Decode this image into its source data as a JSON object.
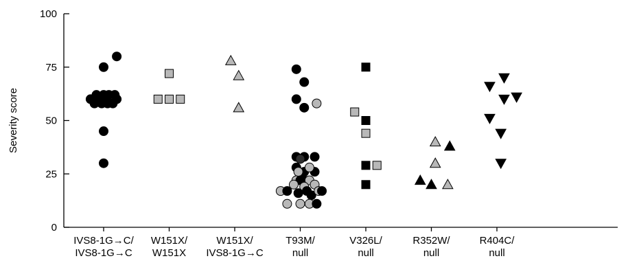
{
  "chart_data": {
    "type": "scatter",
    "title": "",
    "xlabel": "",
    "ylabel": "Severity score",
    "ylim": [
      0,
      100
    ],
    "yticks": [
      0,
      25,
      50,
      75,
      100
    ],
    "grid": false,
    "legend": "none",
    "categories": [
      {
        "line1": "IVS8-1G→C/",
        "line2": "IVS8-1G→C"
      },
      {
        "line1": "W151X/",
        "line2": "W151X"
      },
      {
        "line1": "W151X/",
        "line2": "IVS8-1G→C"
      },
      {
        "line1": "T93M/",
        "line2": "null"
      },
      {
        "line1": "V326L/",
        "line2": "null"
      },
      {
        "line1": "R352W/",
        "line2": "null"
      },
      {
        "line1": "R404C/",
        "line2": "null"
      }
    ],
    "colors": {
      "black": "#000000",
      "grey": "#b8b8b8",
      "dark": "#2e2e2e"
    },
    "points": [
      {
        "cat": 0,
        "dx": -0.2,
        "y": 60,
        "shape": "circle",
        "fill": "black"
      },
      {
        "cat": 0,
        "dx": -0.14,
        "y": 58,
        "shape": "circle",
        "fill": "black"
      },
      {
        "cat": 0,
        "dx": -0.11,
        "y": 62,
        "shape": "circle",
        "fill": "black"
      },
      {
        "cat": 0,
        "dx": -0.06,
        "y": 60,
        "shape": "circle",
        "fill": "black"
      },
      {
        "cat": 0,
        "dx": -0.03,
        "y": 58,
        "shape": "circle",
        "fill": "black"
      },
      {
        "cat": 0,
        "dx": 0.0,
        "y": 62,
        "shape": "circle",
        "fill": "black"
      },
      {
        "cat": 0,
        "dx": 0.03,
        "y": 60,
        "shape": "circle",
        "fill": "black"
      },
      {
        "cat": 0,
        "dx": 0.06,
        "y": 58,
        "shape": "circle",
        "fill": "black"
      },
      {
        "cat": 0,
        "dx": 0.08,
        "y": 62,
        "shape": "circle",
        "fill": "black"
      },
      {
        "cat": 0,
        "dx": 0.14,
        "y": 58,
        "shape": "circle",
        "fill": "black"
      },
      {
        "cat": 0,
        "dx": 0.17,
        "y": 62,
        "shape": "circle",
        "fill": "black"
      },
      {
        "cat": 0,
        "dx": 0.2,
        "y": 60,
        "shape": "circle",
        "fill": "black"
      },
      {
        "cat": 0,
        "dx": 0.0,
        "y": 75,
        "shape": "circle",
        "fill": "black"
      },
      {
        "cat": 0,
        "dx": 0.2,
        "y": 80,
        "shape": "circle",
        "fill": "black"
      },
      {
        "cat": 0,
        "dx": 0.0,
        "y": 45,
        "shape": "circle",
        "fill": "black"
      },
      {
        "cat": 0,
        "dx": 0.0,
        "y": 30,
        "shape": "circle",
        "fill": "black"
      },
      {
        "cat": 1,
        "dx": -0.17,
        "y": 60,
        "shape": "square",
        "fill": "grey"
      },
      {
        "cat": 1,
        "dx": 0.0,
        "y": 60,
        "shape": "square",
        "fill": "grey"
      },
      {
        "cat": 1,
        "dx": 0.17,
        "y": 60,
        "shape": "square",
        "fill": "grey"
      },
      {
        "cat": 1,
        "dx": 0.0,
        "y": 72,
        "shape": "square",
        "fill": "grey"
      },
      {
        "cat": 2,
        "dx": -0.06,
        "y": 78,
        "shape": "triangle-up",
        "fill": "grey"
      },
      {
        "cat": 2,
        "dx": 0.06,
        "y": 71,
        "shape": "triangle-up",
        "fill": "grey"
      },
      {
        "cat": 2,
        "dx": 0.06,
        "y": 56,
        "shape": "triangle-up",
        "fill": "grey"
      },
      {
        "cat": 3,
        "dx": -0.06,
        "y": 74,
        "shape": "circle",
        "fill": "black"
      },
      {
        "cat": 3,
        "dx": 0.06,
        "y": 68,
        "shape": "circle",
        "fill": "black"
      },
      {
        "cat": 3,
        "dx": -0.06,
        "y": 60,
        "shape": "circle",
        "fill": "black"
      },
      {
        "cat": 3,
        "dx": 0.06,
        "y": 56,
        "shape": "circle",
        "fill": "black"
      },
      {
        "cat": 3,
        "dx": 0.25,
        "y": 58,
        "shape": "circle",
        "fill": "grey"
      },
      {
        "cat": 3,
        "dx": -0.06,
        "y": 33,
        "shape": "circle",
        "fill": "black"
      },
      {
        "cat": 3,
        "dx": 0.06,
        "y": 33,
        "shape": "circle",
        "fill": "black"
      },
      {
        "cat": 3,
        "dx": 0.22,
        "y": 33,
        "shape": "circle",
        "fill": "black"
      },
      {
        "cat": 3,
        "dx": 0.0,
        "y": 32,
        "shape": "circle",
        "fill": "dark"
      },
      {
        "cat": 3,
        "dx": -0.06,
        "y": 28,
        "shape": "circle",
        "fill": "black"
      },
      {
        "cat": 3,
        "dx": 0.06,
        "y": 26,
        "shape": "circle",
        "fill": "black"
      },
      {
        "cat": 3,
        "dx": 0.22,
        "y": 26,
        "shape": "circle",
        "fill": "black"
      },
      {
        "cat": 3,
        "dx": 0.14,
        "y": 28,
        "shape": "circle",
        "fill": "grey"
      },
      {
        "cat": 3,
        "dx": -0.03,
        "y": 26,
        "shape": "circle",
        "fill": "grey"
      },
      {
        "cat": 3,
        "dx": -0.06,
        "y": 22,
        "shape": "circle",
        "fill": "grey"
      },
      {
        "cat": 3,
        "dx": 0.0,
        "y": 22,
        "shape": "circle",
        "fill": "black"
      },
      {
        "cat": 3,
        "dx": 0.06,
        "y": 22,
        "shape": "circle",
        "fill": "black"
      },
      {
        "cat": 3,
        "dx": 0.14,
        "y": 22,
        "shape": "circle",
        "fill": "grey"
      },
      {
        "cat": 3,
        "dx": 0.22,
        "y": 20,
        "shape": "circle",
        "fill": "grey"
      },
      {
        "cat": 3,
        "dx": -0.1,
        "y": 20,
        "shape": "circle",
        "fill": "grey"
      },
      {
        "cat": 3,
        "dx": 0.06,
        "y": 19,
        "shape": "circle",
        "fill": "grey"
      },
      {
        "cat": 3,
        "dx": -0.3,
        "y": 17,
        "shape": "circle",
        "fill": "grey"
      },
      {
        "cat": 3,
        "dx": -0.2,
        "y": 17,
        "shape": "circle",
        "fill": "black"
      },
      {
        "cat": 3,
        "dx": -0.03,
        "y": 16,
        "shape": "circle",
        "fill": "black"
      },
      {
        "cat": 3,
        "dx": 0.1,
        "y": 17,
        "shape": "circle",
        "fill": "black"
      },
      {
        "cat": 3,
        "dx": 0.17,
        "y": 15,
        "shape": "circle",
        "fill": "black"
      },
      {
        "cat": 3,
        "dx": 0.28,
        "y": 17,
        "shape": "circle",
        "fill": "grey"
      },
      {
        "cat": 3,
        "dx": 0.33,
        "y": 17,
        "shape": "circle",
        "fill": "black"
      },
      {
        "cat": 3,
        "dx": -0.2,
        "y": 11,
        "shape": "circle",
        "fill": "grey"
      },
      {
        "cat": 3,
        "dx": 0.0,
        "y": 11,
        "shape": "circle",
        "fill": "grey"
      },
      {
        "cat": 3,
        "dx": 0.14,
        "y": 11,
        "shape": "circle",
        "fill": "grey"
      },
      {
        "cat": 3,
        "dx": 0.25,
        "y": 11,
        "shape": "circle",
        "fill": "black"
      },
      {
        "cat": 4,
        "dx": 0.0,
        "y": 75,
        "shape": "square",
        "fill": "black"
      },
      {
        "cat": 4,
        "dx": -0.17,
        "y": 54,
        "shape": "square",
        "fill": "grey"
      },
      {
        "cat": 4,
        "dx": 0.0,
        "y": 50,
        "shape": "square",
        "fill": "black"
      },
      {
        "cat": 4,
        "dx": 0.0,
        "y": 44,
        "shape": "square",
        "fill": "grey"
      },
      {
        "cat": 4,
        "dx": 0.0,
        "y": 29,
        "shape": "square",
        "fill": "black"
      },
      {
        "cat": 4,
        "dx": 0.17,
        "y": 29,
        "shape": "square",
        "fill": "grey"
      },
      {
        "cat": 4,
        "dx": 0.0,
        "y": 20,
        "shape": "square",
        "fill": "black"
      },
      {
        "cat": 5,
        "dx": 0.06,
        "y": 40,
        "shape": "triangle-up",
        "fill": "grey"
      },
      {
        "cat": 5,
        "dx": 0.28,
        "y": 38,
        "shape": "triangle-up",
        "fill": "black"
      },
      {
        "cat": 5,
        "dx": 0.06,
        "y": 30,
        "shape": "triangle-up",
        "fill": "grey"
      },
      {
        "cat": 5,
        "dx": -0.17,
        "y": 22,
        "shape": "triangle-up",
        "fill": "black"
      },
      {
        "cat": 5,
        "dx": 0.0,
        "y": 20,
        "shape": "triangle-up",
        "fill": "black"
      },
      {
        "cat": 5,
        "dx": 0.25,
        "y": 20,
        "shape": "triangle-up",
        "fill": "grey"
      },
      {
        "cat": 6,
        "dx": -0.11,
        "y": 66,
        "shape": "triangle-down",
        "fill": "black"
      },
      {
        "cat": 6,
        "dx": 0.11,
        "y": 70,
        "shape": "triangle-down",
        "fill": "black"
      },
      {
        "cat": 6,
        "dx": 0.11,
        "y": 60,
        "shape": "triangle-down",
        "fill": "black"
      },
      {
        "cat": 6,
        "dx": 0.3,
        "y": 61,
        "shape": "triangle-down",
        "fill": "black"
      },
      {
        "cat": 6,
        "dx": -0.11,
        "y": 51,
        "shape": "triangle-down",
        "fill": "black"
      },
      {
        "cat": 6,
        "dx": 0.06,
        "y": 44,
        "shape": "triangle-down",
        "fill": "black"
      },
      {
        "cat": 6,
        "dx": 0.06,
        "y": 30,
        "shape": "triangle-down",
        "fill": "black"
      }
    ]
  }
}
